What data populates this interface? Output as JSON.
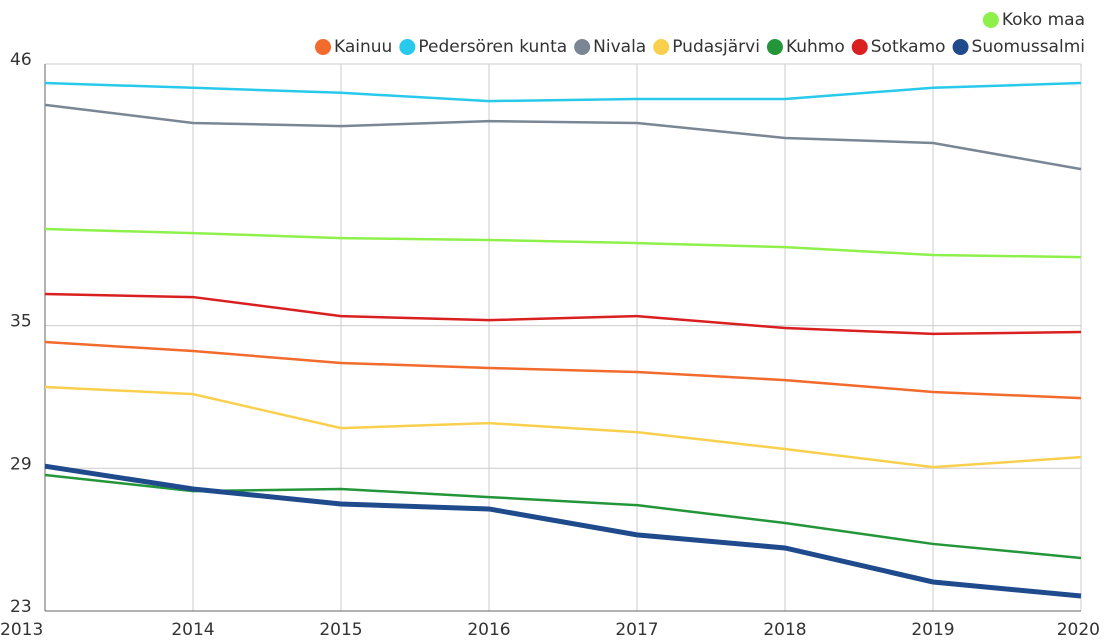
{
  "chart_data": {
    "type": "line",
    "x": [
      2013,
      2014,
      2015,
      2016,
      2017,
      2018,
      2019,
      2020
    ],
    "xlim": [
      2013,
      2020
    ],
    "xticks": [
      2013,
      2014,
      2015,
      2016,
      2017,
      2018,
      2019,
      2020
    ],
    "ylim": [
      23,
      46
    ],
    "yticks": [
      23,
      29,
      35,
      46
    ],
    "grid": true,
    "legend": "top",
    "series": [
      {
        "name": "Kainuu",
        "color": "#f26b2c",
        "values": [
          34.31,
          33.93,
          33.43,
          33.22,
          33.05,
          32.71,
          32.21,
          31.95
        ]
      },
      {
        "name": "Pedersören kunta",
        "color": "#29c9ec",
        "values": [
          45.2,
          45.0,
          44.79,
          44.44,
          44.53,
          44.53,
          45.0,
          45.2
        ]
      },
      {
        "name": "Nivala",
        "color": "#7a8694",
        "values": [
          44.28,
          43.52,
          43.39,
          43.6,
          43.52,
          42.89,
          42.68,
          41.58
        ]
      },
      {
        "name": "Pudasjärvi",
        "color": "#f9d04e",
        "values": [
          32.42,
          32.12,
          30.69,
          30.9,
          30.52,
          29.81,
          29.05,
          29.47
        ]
      },
      {
        "name": "Kuhmo",
        "color": "#24963a",
        "values": [
          28.72,
          28.04,
          28.13,
          27.79,
          27.45,
          26.7,
          25.82,
          25.23
        ]
      },
      {
        "name": "Sotkamo",
        "color": "#d91f1f",
        "values": [
          36.33,
          36.2,
          35.4,
          35.23,
          35.4,
          34.9,
          34.65,
          34.73
        ]
      },
      {
        "name": "Suomussalmi",
        "color": "#1f4a8c",
        "values": [
          29.09,
          28.13,
          27.5,
          27.29,
          26.2,
          25.65,
          24.22,
          23.63
        ]
      },
      {
        "name": "Koko maa",
        "color": "#8ef04a",
        "values": [
          39.06,
          38.89,
          38.68,
          38.6,
          38.47,
          38.3,
          37.97,
          37.88
        ]
      }
    ]
  }
}
